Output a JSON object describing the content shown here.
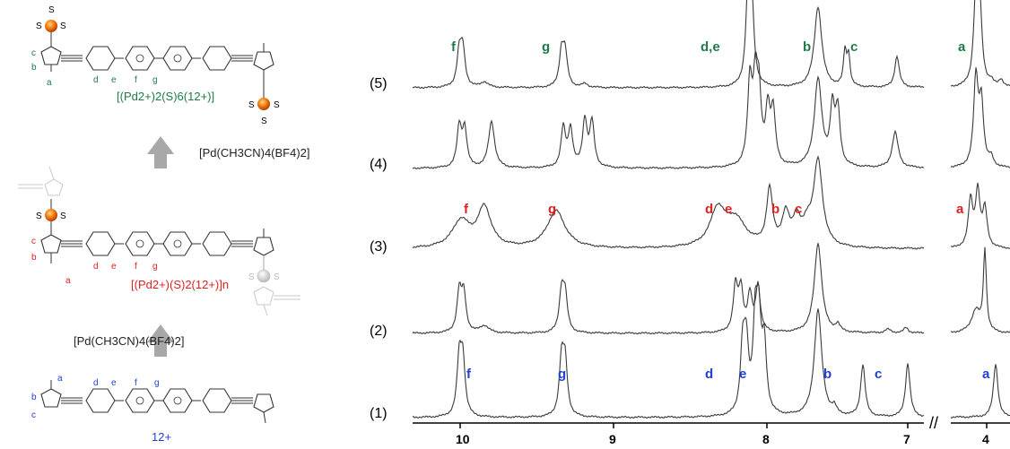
{
  "colors": {
    "green": "#1e7a46",
    "red": "#e02020",
    "blue": "#1f3fd6",
    "grey": "#a8a8a8",
    "pd_orange": "#e8600c"
  },
  "scheme": {
    "complex_top": "[(Pd2+)2(S)6(12+)]",
    "complex_middle": "[(Pd2+)(S)2(12+)]n",
    "ligand": "12+",
    "reagent_label": "[Pd(CH3CN)4(BF4)2]",
    "solvent_label": "S",
    "atom_labels": [
      "a",
      "b",
      "c",
      "d",
      "e",
      "f",
      "g"
    ]
  },
  "spectra": {
    "axis_ticks": [
      "10",
      "9",
      "8",
      "7",
      "4"
    ],
    "traces": [
      {
        "label": "(5)",
        "color": "green",
        "peaks": [
          {
            "text": "f"
          },
          {
            "text": "g"
          },
          {
            "text": "d,e"
          },
          {
            "text": "b"
          },
          {
            "text": "c"
          },
          {
            "text": "a"
          }
        ]
      },
      {
        "label": "(4)",
        "peaks": []
      },
      {
        "label": "(3)",
        "color": "red",
        "peaks": [
          {
            "text": "f"
          },
          {
            "text": "g"
          },
          {
            "text": "d"
          },
          {
            "text": "e"
          },
          {
            "text": "b"
          },
          {
            "text": "c"
          },
          {
            "text": "a"
          }
        ]
      },
      {
        "label": "(2)",
        "peaks": []
      },
      {
        "label": "(1)",
        "color": "blue",
        "peaks": [
          {
            "text": "f"
          },
          {
            "text": "g"
          },
          {
            "text": "d"
          },
          {
            "text": "e"
          },
          {
            "text": "b"
          },
          {
            "text": "c"
          },
          {
            "text": "a"
          }
        ]
      }
    ]
  }
}
